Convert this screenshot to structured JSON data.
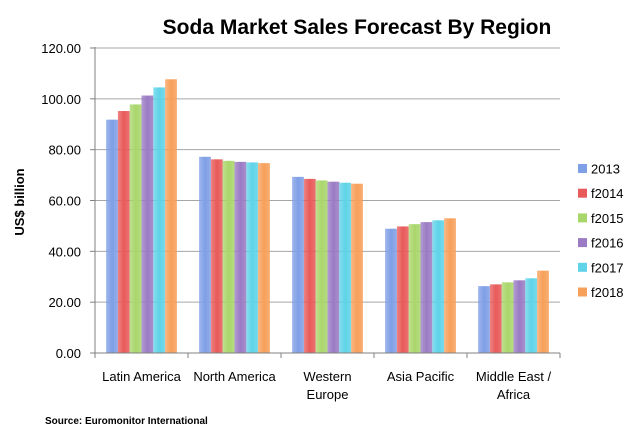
{
  "chart_data": {
    "type": "bar",
    "title": "Soda Market Sales Forecast By Region",
    "xlabel": "",
    "ylabel": "US$ billion",
    "ylim": [
      0,
      120
    ],
    "yticks": [
      "0.00",
      "20.00",
      "40.00",
      "60.00",
      "80.00",
      "100.00",
      "120.00"
    ],
    "grid": true,
    "legend_position": "right",
    "categories": [
      [
        "Latin America"
      ],
      [
        "North America"
      ],
      [
        "Western",
        "Europe"
      ],
      [
        "Asia Pacific"
      ],
      [
        "Middle East /",
        "Africa"
      ]
    ],
    "series": [
      {
        "name": "2013",
        "color": "#7f9fe6",
        "values": [
          91.8,
          77.2,
          69.3,
          48.9,
          26.3
        ]
      },
      {
        "name": "f2014",
        "color": "#e85a5a",
        "values": [
          95.2,
          76.2,
          68.5,
          49.8,
          27.0
        ]
      },
      {
        "name": "f2015",
        "color": "#a9d66b",
        "values": [
          97.8,
          75.6,
          67.9,
          50.7,
          27.8
        ]
      },
      {
        "name": "f2016",
        "color": "#9a7bc4",
        "values": [
          101.3,
          75.2,
          67.4,
          51.5,
          28.6
        ]
      },
      {
        "name": "f2017",
        "color": "#5fd3e8",
        "values": [
          104.5,
          75.0,
          67.0,
          52.2,
          29.4
        ]
      },
      {
        "name": "f2018",
        "color": "#f7a05a",
        "values": [
          107.7,
          74.7,
          66.6,
          53.0,
          32.4
        ]
      }
    ],
    "source": "Source: Euromonitor International"
  }
}
